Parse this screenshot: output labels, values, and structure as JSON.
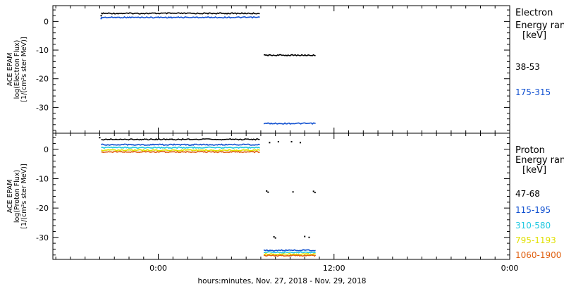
{
  "figure": {
    "xlabel": "hours:minutes, Nov. 27, 2018 - Nov. 29, 2018",
    "x_ticks": [
      {
        "hour": 0,
        "label": "0:00"
      },
      {
        "hour": 12,
        "label": "12:00"
      },
      {
        "hour": 24,
        "label": "0:00"
      }
    ],
    "x_range_hours": [
      -7.2,
      24.0
    ]
  },
  "chart_data": [
    {
      "type": "scatter",
      "ylabel_lines": [
        "ACE EPAM",
        "log(Electron Flux)",
        "[1/(cm²s ster MeV)]"
      ],
      "ylim": [
        -39,
        5.5
      ],
      "y_ticks": [
        0,
        -10,
        -20,
        -30
      ],
      "grid": false,
      "legend": {
        "position": "right",
        "title_lines": [
          "Electron",
          "Energy ran",
          "[keV]"
        ]
      },
      "series": [
        {
          "name": "38-53",
          "color": "#000000",
          "segments": [
            {
              "x_start": -3.9,
              "x_end": 7.0,
              "y": 2.8
            },
            {
              "x_start": 7.2,
              "x_end": 10.8,
              "y": -11.8
            }
          ],
          "isolated_points": [
            {
              "x": -3.9,
              "y": 2.0
            }
          ]
        },
        {
          "name": "175-315",
          "color": "#1050d0",
          "segments": [
            {
              "x_start": -3.9,
              "x_end": 7.0,
              "y": 1.4
            },
            {
              "x_start": 7.2,
              "x_end": 10.8,
              "y": -35.6
            }
          ],
          "isolated_points": [
            {
              "x": -3.9,
              "y": 1.0
            }
          ]
        }
      ]
    },
    {
      "type": "scatter",
      "ylabel_lines": [
        "ACE EPAM",
        "log(Proton Flux)",
        "[1/(cm²s ster MeV)]"
      ],
      "ylim": [
        -37.5,
        5.5
      ],
      "y_ticks": [
        0,
        -10,
        -20,
        -30
      ],
      "grid": false,
      "legend": {
        "position": "right",
        "title_lines": [
          "Proton",
          "Energy ran",
          "[keV]"
        ]
      },
      "series": [
        {
          "name": "47-68",
          "color": "#000000",
          "segments": [
            {
              "x_start": -3.9,
              "x_end": 7.0,
              "y": 3.4
            }
          ],
          "sparse_points": [
            {
              "x": -4.0,
              "y": 4.0
            },
            {
              "x": 7.6,
              "y": 2.3
            },
            {
              "x": 8.2,
              "y": 2.6
            },
            {
              "x": 9.1,
              "y": 2.6
            },
            {
              "x": 9.7,
              "y": 2.3
            },
            {
              "x": 7.4,
              "y": -14.2
            },
            {
              "x": 7.5,
              "y": -14.6
            },
            {
              "x": 9.2,
              "y": -14.5
            },
            {
              "x": 10.6,
              "y": -14.3
            },
            {
              "x": 10.7,
              "y": -14.7
            },
            {
              "x": 7.9,
              "y": -29.8
            },
            {
              "x": 8.0,
              "y": -30.2
            },
            {
              "x": 10.0,
              "y": -29.7
            },
            {
              "x": 10.3,
              "y": -30.0
            }
          ]
        },
        {
          "name": "115-195",
          "color": "#1050d0",
          "segments": [
            {
              "x_start": -3.9,
              "x_end": 7.0,
              "y": 1.6
            },
            {
              "x_start": 7.2,
              "x_end": 10.8,
              "y": -34.4
            }
          ]
        },
        {
          "name": "310-580",
          "color": "#20c8e0",
          "segments": [
            {
              "x_start": -3.9,
              "x_end": 7.0,
              "y": 0.6
            },
            {
              "x_start": 7.2,
              "x_end": 10.8,
              "y": -35.1
            }
          ]
        },
        {
          "name": "795-1193",
          "color": "#e0e000",
          "segments": [
            {
              "x_start": -3.9,
              "x_end": 7.0,
              "y": -0.3
            },
            {
              "x_start": 7.2,
              "x_end": 10.8,
              "y": -35.7
            }
          ]
        },
        {
          "name": "1060-1900",
          "color": "#e06010",
          "segments": [
            {
              "x_start": -3.9,
              "x_end": 7.0,
              "y": -0.9
            },
            {
              "x_start": 7.2,
              "x_end": 10.8,
              "y": -36.2
            }
          ]
        }
      ]
    }
  ]
}
